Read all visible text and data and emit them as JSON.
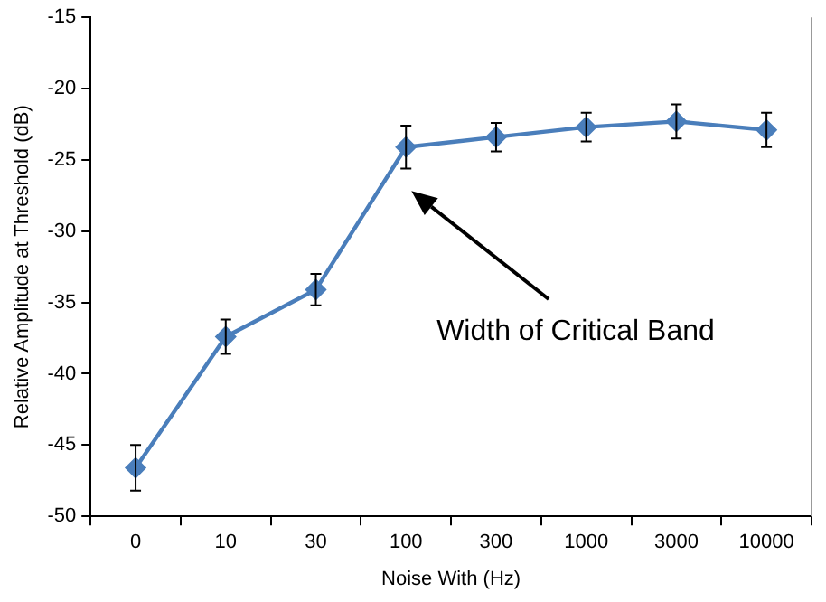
{
  "chart_data": {
    "type": "line",
    "xlabel": "Noise With (Hz)",
    "ylabel": "Relative Amplitude at Threshold (dB)",
    "categories": [
      "0",
      "10",
      "30",
      "100",
      "300",
      "1000",
      "3000",
      "10000"
    ],
    "series": [
      {
        "color": "#4a7ebb",
        "values": [
          -46.6,
          -37.4,
          -34.1,
          -24.1,
          -23.4,
          -22.7,
          -22.3,
          -22.9
        ],
        "errors": [
          1.6,
          1.2,
          1.1,
          1.5,
          1.0,
          1.0,
          1.2,
          1.2
        ]
      }
    ],
    "ylim": [
      -50,
      -15
    ],
    "yticks": [
      -50,
      -45,
      -40,
      -35,
      -30,
      -25,
      -20,
      -15
    ],
    "annotations": [
      "Width of Critical Band"
    ],
    "grid": false,
    "legend": false,
    "marker": "diamond",
    "line_style": "solid"
  }
}
